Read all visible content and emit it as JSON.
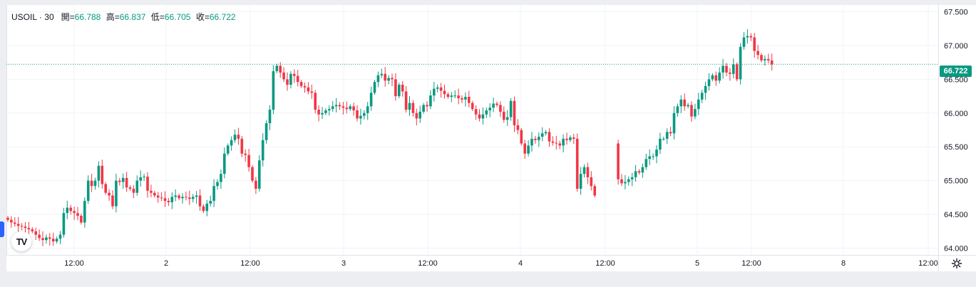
{
  "header": {
    "symbol": "USOIL",
    "interval": "30",
    "open_label": "開=",
    "open_value": "66.788",
    "high_label": "高=",
    "high_value": "66.837",
    "low_label": "低=",
    "low_value": "66.705",
    "close_label": "收=",
    "close_value": "66.722"
  },
  "last_price": "66.722",
  "colors": {
    "up": "#089981",
    "down": "#f23645",
    "line": "#089981",
    "grid": "#f0f3fa"
  },
  "icons": {
    "logo": "tradingview-logo-icon",
    "settings": "gear-icon"
  },
  "logo_text": "TV",
  "chart_data": {
    "type": "candlestick",
    "symbol": "USOIL",
    "interval": "30",
    "ylim": [
      63.9,
      67.6
    ],
    "y_ticks": [
      "64.000",
      "64.500",
      "65.000",
      "65.500",
      "66.000",
      "66.500",
      "67.000",
      "67.500"
    ],
    "x_tick_labels": [
      "12:00",
      "2",
      "12:00",
      "3",
      "12:00",
      "4",
      "12:00",
      "5",
      "12:00",
      "8",
      "12:00"
    ],
    "closes": [
      64.42,
      64.38,
      64.36,
      64.33,
      64.32,
      64.3,
      64.28,
      64.25,
      64.2,
      64.15,
      64.12,
      64.16,
      64.14,
      64.1,
      64.14,
      64.2,
      64.52,
      64.6,
      64.55,
      64.52,
      64.48,
      64.38,
      64.7,
      65.0,
      64.92,
      65.0,
      65.22,
      64.95,
      64.82,
      64.78,
      64.62,
      65.0,
      64.98,
      65.04,
      64.9,
      64.88,
      64.82,
      65.0,
      65.05,
      65.06,
      64.85,
      64.82,
      64.78,
      64.75,
      64.74,
      64.7,
      64.68,
      64.76,
      64.78,
      64.74,
      64.76,
      64.75,
      64.73,
      64.76,
      64.78,
      64.62,
      64.55,
      64.66,
      64.7,
      64.92,
      64.98,
      65.1,
      65.4,
      65.52,
      65.6,
      65.68,
      65.62,
      65.4,
      65.38,
      65.2,
      65.0,
      64.88,
      65.3,
      65.6,
      65.85,
      66.05,
      66.62,
      66.7,
      66.6,
      66.5,
      66.42,
      66.58,
      66.55,
      66.46,
      66.4,
      66.38,
      66.32,
      66.3,
      66.05,
      65.98,
      66.0,
      66.04,
      66.06,
      66.1,
      66.12,
      66.1,
      66.08,
      66.06,
      66.1,
      66.04,
      65.92,
      65.96,
      66.0,
      66.1,
      66.3,
      66.46,
      66.56,
      66.58,
      66.48,
      66.52,
      66.5,
      66.25,
      66.42,
      66.32,
      66.05,
      66.15,
      66.0,
      65.92,
      66.02,
      66.12,
      66.1,
      66.26,
      66.36,
      66.38,
      66.33,
      66.28,
      66.24,
      66.26,
      66.26,
      66.22,
      66.2,
      66.24,
      66.15,
      66.06,
      65.98,
      65.92,
      65.98,
      66.04,
      66.08,
      66.14,
      66.12,
      66.02,
      65.9,
      65.94,
      66.18,
      65.82,
      65.75,
      65.55,
      65.4,
      65.52,
      65.62,
      65.6,
      65.65,
      65.7,
      65.72,
      65.58,
      65.56,
      65.55,
      65.52,
      65.62,
      65.6,
      65.64,
      65.62,
      64.88,
      65.1,
      65.2,
      65.05,
      64.92,
      64.78,
      65.02,
      64.96,
      64.98,
      65.02,
      65.05,
      65.14,
      65.12,
      65.2,
      65.32,
      65.36,
      65.36,
      65.46,
      65.62,
      65.62,
      65.72,
      65.7,
      66.0,
      66.1,
      66.2,
      66.1,
      66.12,
      65.95,
      66.06,
      66.2,
      66.3,
      66.4,
      66.5,
      66.56,
      66.48,
      66.6,
      66.7,
      66.6,
      66.58,
      66.72,
      66.5,
      66.98,
      67.12,
      67.14,
      67.12,
      66.92,
      66.86,
      66.78,
      66.8,
      66.78,
      66.72
    ],
    "last": 66.722
  }
}
